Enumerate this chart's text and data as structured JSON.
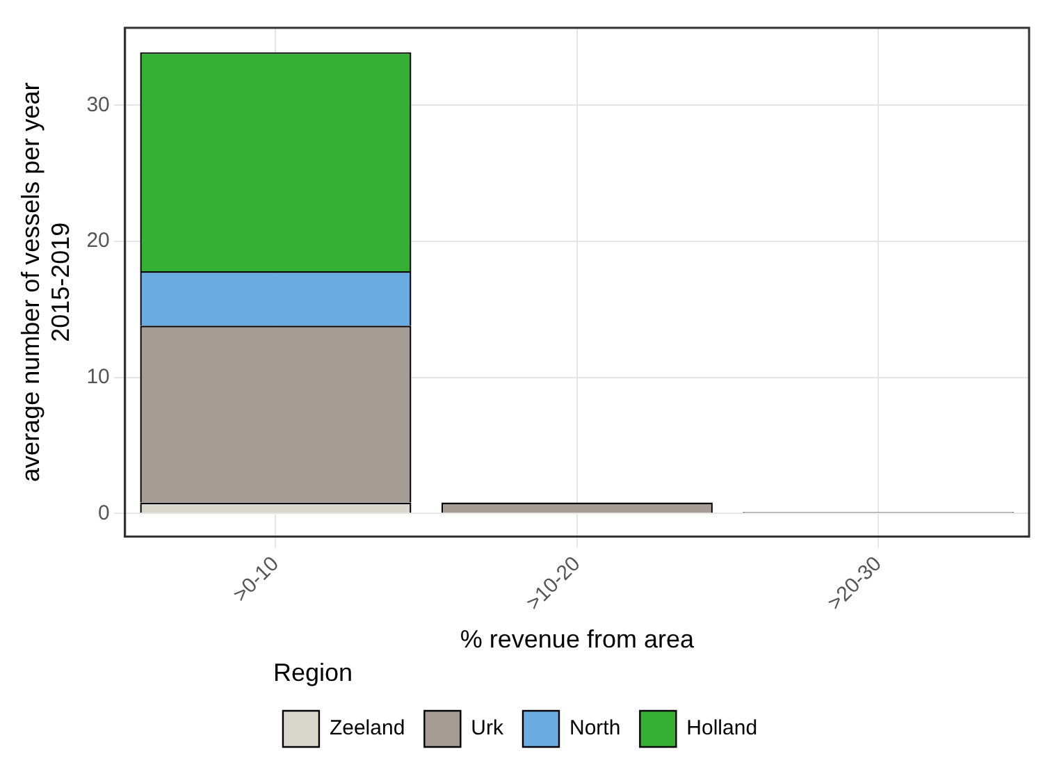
{
  "chart_data": {
    "type": "bar",
    "stacked": true,
    "xlabel": "% revenue from area",
    "ylabel": "average number of vessels per year\n2015-2019",
    "legend_title": "Region",
    "legend": "bottom",
    "grid": true,
    "categories": [
      ">0-10",
      ">10-20",
      ">20-30"
    ],
    "series": [
      {
        "name": "Zeeland",
        "color": "#d9d6ce",
        "values": [
          0.8,
          null,
          null
        ]
      },
      {
        "name": "Urk",
        "color": "#a59c95",
        "values": [
          13.0,
          0.8,
          0.1
        ]
      },
      {
        "name": "North",
        "color": "#6aace2",
        "values": [
          4.0,
          null,
          null
        ]
      },
      {
        "name": "Holland",
        "color": "#35b035",
        "values": [
          16.1,
          null,
          null
        ]
      }
    ],
    "ylim": [
      -1.7,
      35.7
    ],
    "yticks": [
      0,
      10,
      20,
      30
    ]
  }
}
